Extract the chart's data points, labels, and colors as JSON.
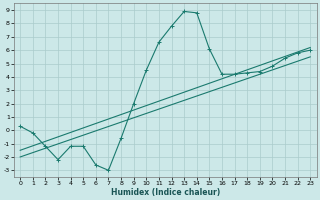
{
  "xlabel": "Humidex (Indice chaleur)",
  "background_color": "#cce8e8",
  "grid_color": "#aacccc",
  "line_color": "#1a7a6e",
  "xlim": [
    -0.5,
    23.5
  ],
  "ylim": [
    -3.5,
    9.5
  ],
  "xticks": [
    0,
    1,
    2,
    3,
    4,
    5,
    6,
    7,
    8,
    9,
    10,
    11,
    12,
    13,
    14,
    15,
    16,
    17,
    18,
    19,
    20,
    21,
    22,
    23
  ],
  "yticks": [
    -3,
    -2,
    -1,
    0,
    1,
    2,
    3,
    4,
    5,
    6,
    7,
    8,
    9
  ],
  "line1_x": [
    0,
    1,
    2,
    3,
    4,
    5,
    6,
    7,
    8,
    9,
    10,
    11,
    12,
    13,
    14,
    15,
    16,
    17,
    18,
    19,
    20,
    21,
    22,
    23
  ],
  "line1_y": [
    0.3,
    -0.2,
    -1.2,
    -2.2,
    -1.2,
    -1.2,
    -2.6,
    -3.0,
    -0.6,
    2.0,
    4.5,
    6.6,
    7.8,
    8.9,
    8.8,
    6.1,
    4.2,
    4.2,
    4.3,
    4.4,
    4.8,
    5.4,
    5.8,
    6.0
  ],
  "line2_x": [
    0,
    23
  ],
  "line2_y": [
    -1.5,
    6.2
  ],
  "line3_x": [
    0,
    23
  ],
  "line3_y": [
    -2.0,
    5.5
  ]
}
